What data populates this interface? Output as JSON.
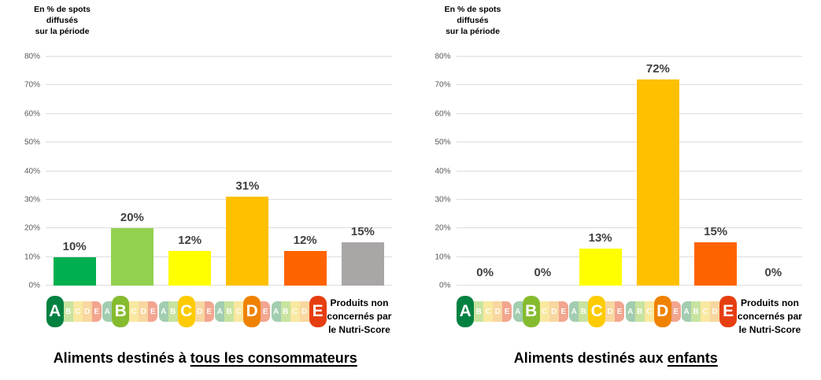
{
  "figure": {
    "background": "#FFFFFF",
    "y_axis_title_lines": [
      "En % de spots",
      "diffusés",
      "sur la période"
    ],
    "grid_color": "#DCDCDC",
    "tick_label_color": "#595959",
    "data_label_color": "#404040",
    "nutriscore_legend": {
      "letters": [
        "A",
        "B",
        "C",
        "D",
        "E"
      ],
      "strong_colors": [
        "#038141",
        "#85BB2F",
        "#FECB02",
        "#EF8200",
        "#E63E11"
      ],
      "pastel_colors": [
        "#A2CDB0",
        "#C8E3A0",
        "#F9E8A0",
        "#F8D7A0",
        "#F2A58F"
      ]
    }
  },
  "chart_data": [
    {
      "type": "bar",
      "title": "Aliments destinés à tous les consommateurs",
      "title_prefix": "Aliments destinés à ",
      "title_underlined": "tous les consommateurs",
      "ylabel": "En % de spots diffusés sur la période",
      "xlabel": "",
      "categories": [
        "Nutri-Score A",
        "Nutri-Score B",
        "Nutri-Score C",
        "Nutri-Score D",
        "Nutri-Score E",
        "Produits non concernés par le Nutri-Score"
      ],
      "values": [
        10,
        20,
        12,
        31,
        12,
        15
      ],
      "data_labels": [
        "10%",
        "20%",
        "12%",
        "31%",
        "12%",
        "15%"
      ],
      "bar_colors": [
        "#00B050",
        "#92D050",
        "#FFFF00",
        "#FFC000",
        "#FF6300",
        "#A9A6A6"
      ],
      "ylim": [
        0,
        80
      ],
      "ytick_step": 10,
      "yticks": [
        "0%",
        "10%",
        "20%",
        "30%",
        "40%",
        "50%",
        "60%",
        "70%",
        "80%"
      ],
      "grid": true,
      "legend_position": "none",
      "na_label_lines": [
        "Produits non",
        "concernés par",
        "le Nutri-Score"
      ]
    },
    {
      "type": "bar",
      "title": "Aliments destinés aux enfants",
      "title_prefix": "Aliments destinés aux ",
      "title_underlined": "enfants",
      "ylabel": "En % de spots diffusés sur la période",
      "xlabel": "",
      "categories": [
        "Nutri-Score A",
        "Nutri-Score B",
        "Nutri-Score C",
        "Nutri-Score D",
        "Nutri-Score E",
        "Produits non concernés par le Nutri-Score"
      ],
      "values": [
        0,
        0,
        13,
        72,
        15,
        0
      ],
      "data_labels": [
        "0%",
        "0%",
        "13%",
        "72%",
        "15%",
        "0%"
      ],
      "bar_colors": [
        "#00B050",
        "#92D050",
        "#FFFF00",
        "#FFC000",
        "#FF6300",
        "#A9A6A6"
      ],
      "ylim": [
        0,
        80
      ],
      "ytick_step": 10,
      "yticks": [
        "0%",
        "10%",
        "20%",
        "30%",
        "40%",
        "50%",
        "60%",
        "70%",
        "80%"
      ],
      "grid": true,
      "legend_position": "none",
      "na_label_lines": [
        "Produits non",
        "concernés par",
        "le Nutri-Score"
      ]
    }
  ]
}
